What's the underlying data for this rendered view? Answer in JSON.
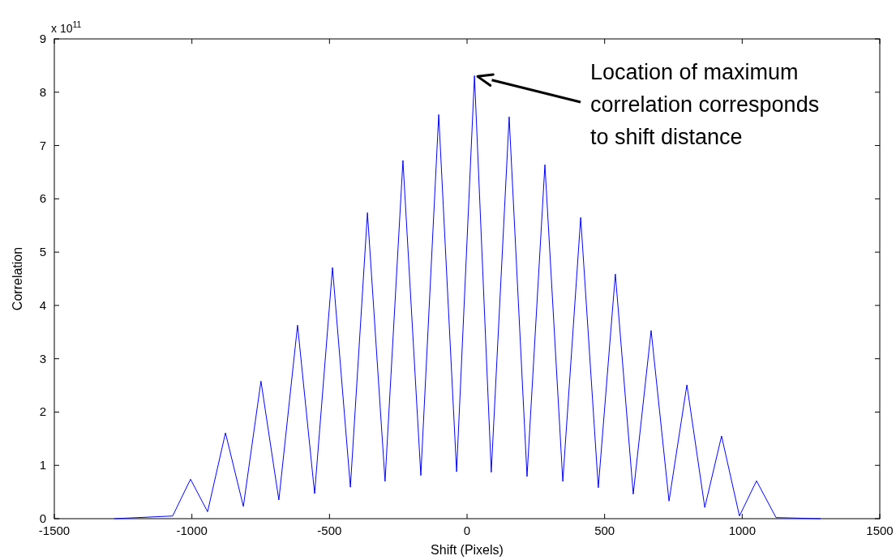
{
  "chart_data": {
    "type": "line",
    "xlabel": "Shift (Pixels)",
    "ylabel": "Correlation",
    "annotations": [
      "x 10$^{11}$",
      "Location of maximum\ncorrelation corresponds\nto shift distance"
    ],
    "x": [
      -1282,
      -1070,
      -1005,
      -943,
      -878,
      -813,
      -749,
      -684,
      -616,
      -554,
      -489,
      -424,
      -362,
      -298,
      -233,
      -168,
      -103,
      -38,
      27,
      88,
      153,
      218,
      283,
      348,
      413,
      477,
      539,
      604,
      669,
      734,
      799,
      864,
      925,
      990,
      1052,
      1123,
      1285
    ],
    "series": [
      {
        "color": "#0000ff",
        "values": [
          0,
          0.05,
          0.74,
          0.13,
          1.61,
          0.23,
          2.58,
          0.35,
          3.63,
          0.47,
          4.71,
          0.59,
          5.74,
          0.7,
          6.72,
          0.81,
          7.58,
          0.88,
          8.31,
          0.87,
          7.54,
          0.79,
          6.64,
          0.7,
          5.65,
          0.58,
          4.59,
          0.46,
          3.53,
          0.33,
          2.51,
          0.21,
          1.55,
          0.05,
          0.71,
          0.02,
          0
        ]
      }
    ],
    "xlim": [
      -1500,
      1500
    ],
    "xticks": [
      -1500,
      -1000,
      -500,
      0,
      500,
      1000,
      1500
    ],
    "ylim": [
      0,
      9
    ],
    "yticks": [
      0,
      1,
      2,
      3,
      4,
      5,
      6,
      7,
      8,
      9
    ],
    "grid": false,
    "marker": "none",
    "line_style": "solid"
  }
}
